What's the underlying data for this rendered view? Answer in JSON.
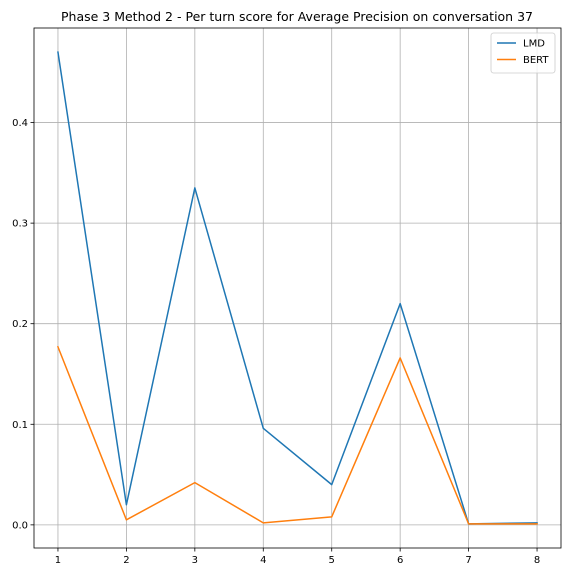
{
  "chart_data": {
    "type": "line",
    "title": "Phase 3 Method 2 - Per turn score for Average Precision on conversation 37",
    "xlabel": "",
    "ylabel": "",
    "x": [
      1,
      2,
      3,
      4,
      5,
      6,
      7,
      8
    ],
    "xticks": [
      "1",
      "2",
      "3",
      "4",
      "5",
      "6",
      "7",
      "8"
    ],
    "yticks": [
      "0.0",
      "0.1",
      "0.2",
      "0.3",
      "0.4"
    ],
    "xlim": [
      0.65,
      8.35
    ],
    "ylim": [
      -0.023,
      0.494
    ],
    "grid": true,
    "legend_position": "top-right",
    "series": [
      {
        "name": "LMD",
        "color": "#1f77b4",
        "values": [
          0.47,
          0.02,
          0.335,
          0.096,
          0.04,
          0.22,
          0.001,
          0.002
        ]
      },
      {
        "name": "BERT",
        "color": "#ff7f0e",
        "values": [
          0.177,
          0.005,
          0.042,
          0.002,
          0.008,
          0.166,
          0.001,
          0.001
        ]
      }
    ]
  }
}
